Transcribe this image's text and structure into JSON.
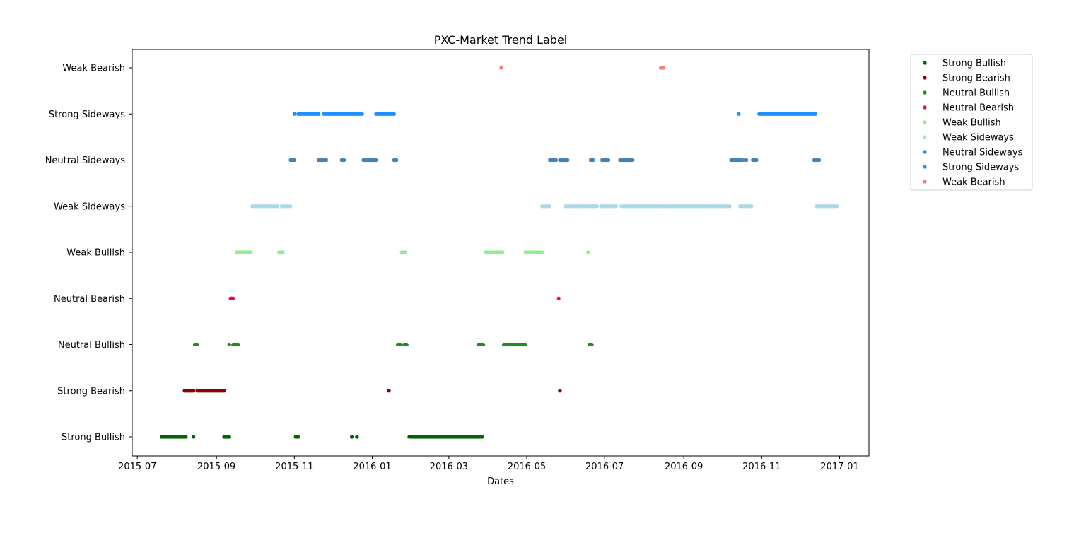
{
  "chart_data": {
    "type": "scatter",
    "title": "PXC-Market Trend Label",
    "xlabel": "Dates",
    "ylabel": "",
    "x_axis_type": "date",
    "xlim": [
      "2015-06-27",
      "2017-01-24"
    ],
    "x_ticks": [
      "2015-07-01",
      "2015-09-01",
      "2015-11-01",
      "2016-01-01",
      "2016-03-01",
      "2016-05-01",
      "2016-07-01",
      "2016-09-01",
      "2016-11-01",
      "2017-01-01"
    ],
    "x_tick_labels": [
      "2015-07",
      "2015-09",
      "2015-11",
      "2016-01",
      "2016-03",
      "2016-05",
      "2016-07",
      "2016-09",
      "2016-11",
      "2017-01"
    ],
    "y_categories": [
      "Strong Bullish",
      "Strong Bearish",
      "Neutral Bullish",
      "Neutral Bearish",
      "Weak Bullish",
      "Weak Sideways",
      "Neutral Sideways",
      "Strong Sideways",
      "Weak Bearish"
    ],
    "grid": false,
    "legend_position": "outside-right-top",
    "series": [
      {
        "name": "Strong Bullish",
        "color": "#006400",
        "ranges": [
          [
            "2015-07-20",
            "2015-08-08"
          ],
          [
            "2015-08-14",
            "2015-08-14"
          ],
          [
            "2015-09-07",
            "2015-09-11"
          ],
          [
            "2015-11-02",
            "2015-11-04"
          ],
          [
            "2015-12-16",
            "2015-12-16"
          ],
          [
            "2015-12-20",
            "2015-12-20"
          ],
          [
            "2016-01-30",
            "2016-03-27"
          ]
        ]
      },
      {
        "name": "Strong Bearish",
        "color": "#8b0000",
        "ranges": [
          [
            "2015-08-07",
            "2015-08-14"
          ],
          [
            "2015-08-17",
            "2015-09-07"
          ],
          [
            "2016-01-14",
            "2016-01-14"
          ],
          [
            "2016-05-27",
            "2016-05-27"
          ]
        ]
      },
      {
        "name": "Neutral Bullish",
        "color": "#228b22",
        "ranges": [
          [
            "2015-08-15",
            "2015-08-17"
          ],
          [
            "2015-09-11",
            "2015-09-11"
          ],
          [
            "2015-09-14",
            "2015-09-18"
          ],
          [
            "2016-01-21",
            "2016-01-23"
          ],
          [
            "2016-01-26",
            "2016-01-28"
          ],
          [
            "2016-03-24",
            "2016-03-28"
          ],
          [
            "2016-04-13",
            "2016-04-30"
          ],
          [
            "2016-06-19",
            "2016-06-21"
          ]
        ]
      },
      {
        "name": "Neutral Bearish",
        "color": "#dc143c",
        "ranges": [
          [
            "2015-09-12",
            "2015-09-14"
          ],
          [
            "2016-05-26",
            "2016-05-26"
          ]
        ]
      },
      {
        "name": "Weak Bullish",
        "color": "#90ee90",
        "ranges": [
          [
            "2015-09-17",
            "2015-09-28"
          ],
          [
            "2015-10-20",
            "2015-10-23"
          ],
          [
            "2016-01-24",
            "2016-01-27"
          ],
          [
            "2016-03-30",
            "2016-04-12"
          ],
          [
            "2016-04-30",
            "2016-05-13"
          ],
          [
            "2016-06-18",
            "2016-06-18"
          ]
        ]
      },
      {
        "name": "Weak Sideways",
        "color": "#add8e6",
        "ranges": [
          [
            "2015-09-29",
            "2015-10-19"
          ],
          [
            "2015-10-22",
            "2015-10-29"
          ],
          [
            "2016-05-13",
            "2016-05-19"
          ],
          [
            "2016-05-31",
            "2016-06-15"
          ],
          [
            "2016-06-17",
            "2016-06-25"
          ],
          [
            "2016-06-28",
            "2016-07-10"
          ],
          [
            "2016-07-14",
            "2016-08-16"
          ],
          [
            "2016-08-18",
            "2016-10-07"
          ],
          [
            "2016-10-15",
            "2016-10-24"
          ],
          [
            "2016-12-14",
            "2016-12-30"
          ]
        ]
      },
      {
        "name": "Neutral Sideways",
        "color": "#4682b4",
        "ranges": [
          [
            "2015-10-29",
            "2015-11-01"
          ],
          [
            "2015-11-20",
            "2015-11-26"
          ],
          [
            "2015-12-08",
            "2015-12-10"
          ],
          [
            "2015-12-25",
            "2016-01-04"
          ],
          [
            "2016-01-18",
            "2016-01-20"
          ],
          [
            "2016-05-19",
            "2016-05-24"
          ],
          [
            "2016-05-27",
            "2016-06-02"
          ],
          [
            "2016-06-20",
            "2016-06-22"
          ],
          [
            "2016-06-29",
            "2016-07-04"
          ],
          [
            "2016-07-13",
            "2016-07-23"
          ],
          [
            "2016-10-08",
            "2016-10-17"
          ],
          [
            "2016-10-19",
            "2016-10-20"
          ],
          [
            "2016-10-25",
            "2016-10-28"
          ],
          [
            "2016-12-12",
            "2016-12-16"
          ]
        ]
      },
      {
        "name": "Strong Sideways",
        "color": "#1e90ff",
        "ranges": [
          [
            "2015-11-01",
            "2015-11-01"
          ],
          [
            "2015-11-04",
            "2015-11-20"
          ],
          [
            "2015-11-24",
            "2015-12-24"
          ],
          [
            "2016-01-04",
            "2016-01-18"
          ],
          [
            "2016-10-14",
            "2016-10-14"
          ],
          [
            "2016-10-30",
            "2016-12-13"
          ]
        ]
      },
      {
        "name": "Weak Bearish",
        "color": "#f08080",
        "ranges": [
          [
            "2016-04-11",
            "2016-04-11"
          ],
          [
            "2016-08-14",
            "2016-08-16"
          ]
        ]
      }
    ]
  }
}
